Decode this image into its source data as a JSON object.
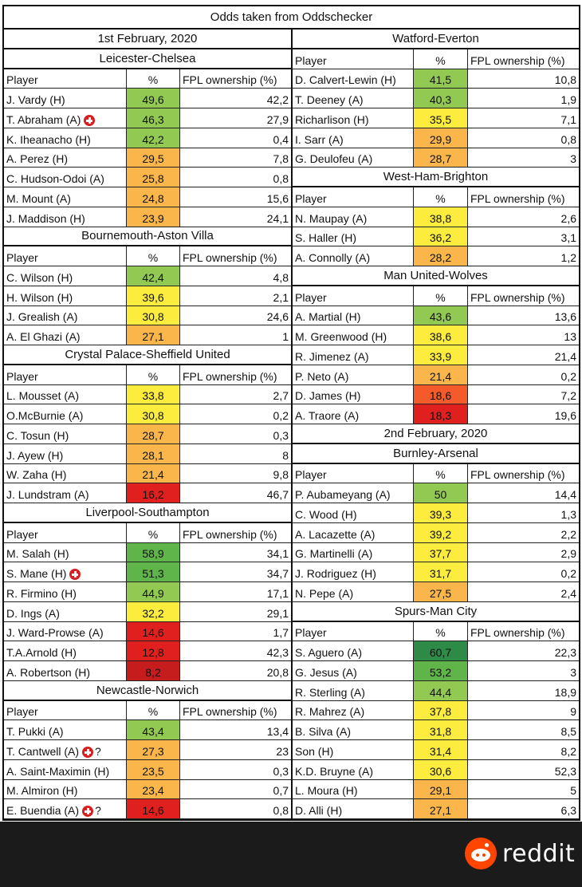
{
  "title": "Odds taken from Oddschecker",
  "headers": {
    "player": "Player",
    "pct": "%",
    "fpl": "FPL ownership (%)"
  },
  "colors": {
    "dark_green": "#2e8b47",
    "green": "#5fb44a",
    "light_green": "#92c953",
    "yellow": "#fcec3d",
    "orange": "#fab64a",
    "red_orange": "#f45a2a",
    "red": "#e0201f",
    "dark_red": "#c51d1d"
  },
  "left": [
    {
      "type": "date",
      "label": "1st February, 2020"
    },
    {
      "type": "match",
      "label": "Leicester-Chelsea"
    },
    {
      "type": "header"
    },
    {
      "type": "player",
      "name": "J. Vardy (H)",
      "pct": "49,6",
      "fpl": "42,2",
      "color": "light_green"
    },
    {
      "type": "player",
      "name": "T. Abraham (A)",
      "pct": "46,3",
      "fpl": "27,9",
      "color": "light_green",
      "injury": true
    },
    {
      "type": "player",
      "name": "K. Iheanacho (H)",
      "pct": "42,2",
      "fpl": "0,4",
      "color": "light_green"
    },
    {
      "type": "player",
      "name": "A. Perez (H)",
      "pct": "29,5",
      "fpl": "7,8",
      "color": "orange"
    },
    {
      "type": "player",
      "name": "C. Hudson-Odoi (A)",
      "pct": "25,8",
      "fpl": "0,8",
      "color": "orange"
    },
    {
      "type": "player",
      "name": "M. Mount (A)",
      "pct": "24,8",
      "fpl": "15,6",
      "color": "orange"
    },
    {
      "type": "player",
      "name": "J. Maddison (H)",
      "pct": "23,9",
      "fpl": "24,1",
      "color": "orange"
    },
    {
      "type": "match",
      "label": "Bournemouth-Aston Villa"
    },
    {
      "type": "header"
    },
    {
      "type": "player",
      "name": "C. Wilson (H)",
      "pct": "42,4",
      "fpl": "4,8",
      "color": "light_green"
    },
    {
      "type": "player",
      "name": "H. Wilson (H)",
      "pct": "39,6",
      "fpl": "2,1",
      "color": "yellow"
    },
    {
      "type": "player",
      "name": "J. Grealish (A)",
      "pct": "30,8",
      "fpl": "24,6",
      "color": "yellow"
    },
    {
      "type": "player",
      "name": "A. El Ghazi (A)",
      "pct": "27,1",
      "fpl": "1",
      "color": "orange"
    },
    {
      "type": "match",
      "label": "Crystal Palace-Sheffield United"
    },
    {
      "type": "header"
    },
    {
      "type": "player",
      "name": "L. Mousset (A)",
      "pct": "33,8",
      "fpl": "2,7",
      "color": "yellow"
    },
    {
      "type": "player",
      "name": "O.McBurnie (A)",
      "pct": "30,8",
      "fpl": "0,2",
      "color": "yellow"
    },
    {
      "type": "player",
      "name": "C. Tosun (H)",
      "pct": "28,7",
      "fpl": "0,3",
      "color": "orange"
    },
    {
      "type": "player",
      "name": "J. Ayew (H)",
      "pct": "28,1",
      "fpl": "8",
      "color": "orange"
    },
    {
      "type": "player",
      "name": "W. Zaha (H)",
      "pct": "21,4",
      "fpl": "9,8",
      "color": "orange"
    },
    {
      "type": "player",
      "name": "J. Lundstram (A)",
      "pct": "16,2",
      "fpl": "46,7",
      "color": "red"
    },
    {
      "type": "match",
      "label": "Liverpool-Southampton"
    },
    {
      "type": "header"
    },
    {
      "type": "player",
      "name": "M. Salah (H)",
      "pct": "58,9",
      "fpl": "34,1",
      "color": "green"
    },
    {
      "type": "player",
      "name": "S. Mane (H)",
      "pct": "51,3",
      "fpl": "34,7",
      "color": "green",
      "injury": true
    },
    {
      "type": "player",
      "name": "R. Firmino (H)",
      "pct": "44,9",
      "fpl": "17,1",
      "color": "light_green"
    },
    {
      "type": "player",
      "name": "D. Ings (A)",
      "pct": "32,2",
      "fpl": "29,1",
      "color": "yellow"
    },
    {
      "type": "player",
      "name": "J. Ward-Prowse (A)",
      "pct": "14,6",
      "fpl": "1,7",
      "color": "red"
    },
    {
      "type": "player",
      "name": "T.A.Arnold (H)",
      "pct": "12,8",
      "fpl": "42,3",
      "color": "red"
    },
    {
      "type": "player",
      "name": "A. Robertson (H)",
      "pct": "8,2",
      "fpl": "20,8",
      "color": "dark_red"
    },
    {
      "type": "match",
      "label": "Newcastle-Norwich"
    },
    {
      "type": "header"
    },
    {
      "type": "player",
      "name": "T. Pukki (A)",
      "pct": "43,4",
      "fpl": "13,4",
      "color": "light_green"
    },
    {
      "type": "player",
      "name": "T. Cantwell (A)",
      "pct": "27,3",
      "fpl": "23",
      "color": "orange",
      "injury": true,
      "question": "?"
    },
    {
      "type": "player",
      "name": "A. Saint-Maximin (H)",
      "pct": "23,5",
      "fpl": "0,3",
      "color": "orange"
    },
    {
      "type": "player",
      "name": "M. Almiron (H)",
      "pct": "23,4",
      "fpl": "0,7",
      "color": "orange"
    },
    {
      "type": "player",
      "name": "E. Buendia (A)",
      "pct": "14,6",
      "fpl": "0,8",
      "color": "red",
      "injury": true,
      "question": "?"
    }
  ],
  "right": [
    {
      "type": "match",
      "label": "Watford-Everton"
    },
    {
      "type": "header"
    },
    {
      "type": "player",
      "name": "D. Calvert-Lewin (H)",
      "pct": "41,5",
      "fpl": "10,8",
      "color": "light_green"
    },
    {
      "type": "player",
      "name": "T. Deeney (A)",
      "pct": "40,3",
      "fpl": "1,9",
      "color": "light_green"
    },
    {
      "type": "player",
      "name": "Richarlison (H)",
      "pct": "35,5",
      "fpl": "7,1",
      "color": "yellow"
    },
    {
      "type": "player",
      "name": "I. Sarr (A)",
      "pct": "29,9",
      "fpl": "0,8",
      "color": "orange"
    },
    {
      "type": "player",
      "name": "G. Deulofeu (A)",
      "pct": "28,7",
      "fpl": "3",
      "color": "orange"
    },
    {
      "type": "match",
      "label": "West-Ham-Brighton"
    },
    {
      "type": "header"
    },
    {
      "type": "player",
      "name": "N. Maupay (A)",
      "pct": "38,8",
      "fpl": "2,6",
      "color": "yellow"
    },
    {
      "type": "player",
      "name": "S. Haller (H)",
      "pct": "36,2",
      "fpl": "3,1",
      "color": "yellow"
    },
    {
      "type": "player",
      "name": "A. Connolly (A)",
      "pct": "28,2",
      "fpl": "1,2",
      "color": "orange"
    },
    {
      "type": "match",
      "label": "Man United-Wolves"
    },
    {
      "type": "header"
    },
    {
      "type": "player",
      "name": "A. Martial (H)",
      "pct": "43,6",
      "fpl": "13,6",
      "color": "light_green"
    },
    {
      "type": "player",
      "name": "M. Greenwood (H)",
      "pct": "38,6",
      "fpl": "13",
      "color": "yellow"
    },
    {
      "type": "player",
      "name": "R. Jimenez (A)",
      "pct": "33,9",
      "fpl": "21,4",
      "color": "yellow"
    },
    {
      "type": "player",
      "name": "P. Neto (A)",
      "pct": "21,4",
      "fpl": "0,2",
      "color": "orange"
    },
    {
      "type": "player",
      "name": "D. James (H)",
      "pct": "18,6",
      "fpl": "7,2",
      "color": "red_orange"
    },
    {
      "type": "player",
      "name": "A. Traore (A)",
      "pct": "18,3",
      "fpl": "19,6",
      "color": "red"
    },
    {
      "type": "date",
      "label": "2nd February, 2020"
    },
    {
      "type": "match",
      "label": "Burnley-Arsenal"
    },
    {
      "type": "header"
    },
    {
      "type": "player",
      "name": "P. Aubameyang (A)",
      "pct": "50",
      "fpl": "14,4",
      "color": "light_green"
    },
    {
      "type": "player",
      "name": "C. Wood (H)",
      "pct": "39,3",
      "fpl": "1,3",
      "color": "yellow"
    },
    {
      "type": "player",
      "name": "A. Lacazette (A)",
      "pct": "39,2",
      "fpl": "2,2",
      "color": "yellow"
    },
    {
      "type": "player",
      "name": "G. Martinelli (A)",
      "pct": "37,7",
      "fpl": "2,9",
      "color": "yellow"
    },
    {
      "type": "player",
      "name": "J. Rodriguez (H)",
      "pct": "31,7",
      "fpl": "0,2",
      "color": "yellow"
    },
    {
      "type": "player",
      "name": "N. Pepe (A)",
      "pct": "27,5",
      "fpl": "2,4",
      "color": "orange"
    },
    {
      "type": "match",
      "label": "Spurs-Man City"
    },
    {
      "type": "header"
    },
    {
      "type": "player",
      "name": "S. Aguero (A)",
      "pct": "60,7",
      "fpl": "22,3",
      "color": "dark_green"
    },
    {
      "type": "player",
      "name": "G. Jesus (A)",
      "pct": "53,2",
      "fpl": "3",
      "color": "green"
    },
    {
      "type": "player",
      "name": "R. Sterling (A)",
      "pct": "44,4",
      "fpl": "18,9",
      "color": "light_green"
    },
    {
      "type": "player",
      "name": "R. Mahrez (A)",
      "pct": "37,8",
      "fpl": "9",
      "color": "yellow"
    },
    {
      "type": "player",
      "name": "B. Silva (A)",
      "pct": "31,8",
      "fpl": "8,5",
      "color": "yellow"
    },
    {
      "type": "player",
      "name": "Son (H)",
      "pct": "31,4",
      "fpl": "8,2",
      "color": "yellow"
    },
    {
      "type": "player",
      "name": "K.D. Bruyne (A)",
      "pct": "30,6",
      "fpl": "52,3",
      "color": "yellow"
    },
    {
      "type": "player",
      "name": "L. Moura (H)",
      "pct": "29,1",
      "fpl": "5",
      "color": "orange"
    },
    {
      "type": "player",
      "name": "D. Alli (H)",
      "pct": "27,1",
      "fpl": "6,3",
      "color": "orange"
    }
  ],
  "footer": {
    "brand": "reddit",
    "logo_icon": "reddit-alien-icon"
  }
}
